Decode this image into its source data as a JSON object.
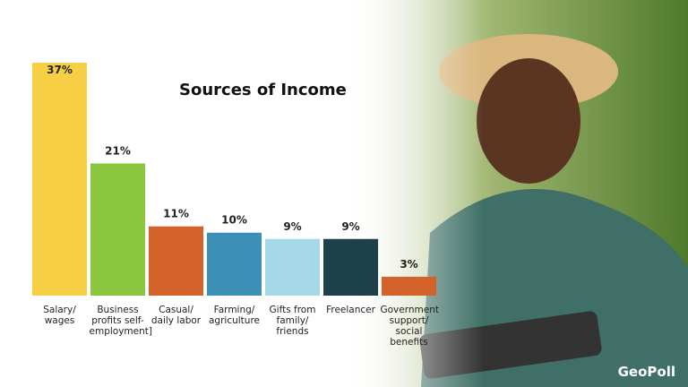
{
  "chart_data": {
    "type": "bar",
    "title": "Sources of Income",
    "categories": [
      "Salary/ wages",
      "Business profits self-employment]",
      "Casual/ daily labor",
      "Farming/ agriculture",
      "Gifts from family/ friends",
      "Freelancer",
      "Government support/ social benefits"
    ],
    "values": [
      37,
      21,
      11,
      10,
      9,
      9,
      3
    ],
    "value_labels": [
      "37%",
      "21%",
      "11%",
      "10%",
      "9%",
      "9%",
      "3%"
    ],
    "colors": [
      "#f6cf45",
      "#8cc63f",
      "#d3622b",
      "#3d90b5",
      "#a6d9e7",
      "#1d404b",
      "#d3622b"
    ]
  },
  "logo": "GeoPoll"
}
